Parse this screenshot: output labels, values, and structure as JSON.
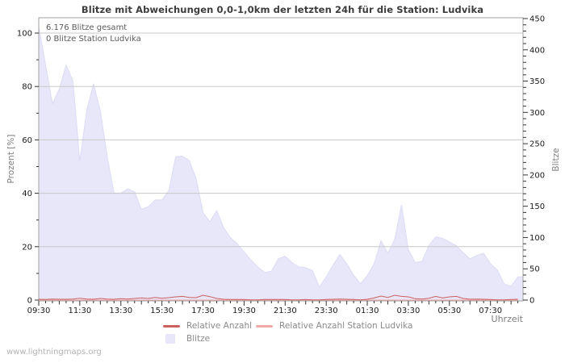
{
  "title": "Blitze mit Abweichungen 0,0-1,0km der letzten 24h für die Station: Ludvika",
  "watermark": "www.lightningmaps.org",
  "annotations": {
    "total": "6.176 Blitze gesamt",
    "station": "0 Blitze Station Ludvika"
  },
  "axes": {
    "left_label": "Prozent  [%]",
    "right_label": "Blitze",
    "x_label": "Uhrzeit"
  },
  "legend": {
    "items": [
      {
        "label": "Relative Anzahl",
        "color": "#cd5f5f",
        "type": "line"
      },
      {
        "label": "Relative Anzahl Station Ludvika",
        "color": "#f4a9a9",
        "type": "line"
      },
      {
        "label": "Blitze",
        "color": "#e7e7f9",
        "type": "area"
      }
    ]
  },
  "colors": {
    "area_fill": "#e7e7f9",
    "area_edge": "#dcdcf4",
    "line_relative": "#cd5f5f",
    "line_relative_station": "#f4a9a9",
    "grid": "#c9c9c9",
    "border": "#a0a0a0",
    "tick": "#333333",
    "tick_label": "#1a1a1a"
  },
  "chart_data": {
    "type": "area",
    "x": [
      "09:30",
      "09:50",
      "10:10",
      "10:30",
      "10:50",
      "11:10",
      "11:30",
      "11:50",
      "12:10",
      "12:30",
      "12:50",
      "13:10",
      "13:30",
      "13:50",
      "14:10",
      "14:30",
      "14:50",
      "15:10",
      "15:30",
      "15:50",
      "16:10",
      "16:30",
      "16:50",
      "17:10",
      "17:30",
      "17:50",
      "18:10",
      "18:30",
      "18:50",
      "19:10",
      "19:30",
      "19:50",
      "20:10",
      "20:30",
      "20:50",
      "21:10",
      "21:30",
      "21:50",
      "22:10",
      "22:30",
      "22:50",
      "23:10",
      "23:30",
      "23:50",
      "00:10",
      "00:30",
      "00:50",
      "01:10",
      "01:30",
      "01:50",
      "02:10",
      "02:30",
      "02:50",
      "03:10",
      "03:30",
      "03:50",
      "04:10",
      "04:30",
      "04:50",
      "05:10",
      "05:30",
      "05:50",
      "06:10",
      "06:30",
      "06:50",
      "07:10",
      "07:30",
      "07:50",
      "08:10",
      "08:30",
      "08:50"
    ],
    "x_tick_labels": [
      "09:30",
      "11:30",
      "13:30",
      "15:30",
      "17:30",
      "19:30",
      "21:30",
      "23:30",
      "01:30",
      "03:30",
      "05:30",
      "07:30"
    ],
    "series": [
      {
        "name": "Blitze",
        "type": "area",
        "axis": "right",
        "color": "#e7e7f9",
        "values": [
          437,
          376,
          314,
          337,
          376,
          350,
          222,
          303,
          346,
          303,
          230,
          171,
          171,
          178,
          173,
          145,
          149,
          160,
          160,
          175,
          229,
          230,
          223,
          194,
          140,
          125,
          143,
          116,
          100,
          90,
          77,
          64,
          53,
          44,
          46,
          66,
          70,
          60,
          53,
          52,
          47,
          21,
          37,
          56,
          73,
          58,
          40,
          26,
          39,
          58,
          95,
          75,
          97,
          152,
          81,
          60,
          62,
          87,
          101,
          99,
          93,
          87,
          76,
          66,
          71,
          75,
          58,
          48,
          26,
          22,
          37
        ]
      },
      {
        "name": "Relative Anzahl",
        "type": "line",
        "axis": "left",
        "color": "#cd5f5f",
        "values": [
          0.3,
          0.2,
          0.4,
          0.3,
          0.3,
          0.4,
          0.7,
          0.4,
          0.3,
          0.6,
          0.4,
          0.3,
          0.5,
          0.4,
          0.6,
          0.8,
          0.6,
          1.0,
          0.7,
          0.9,
          1.2,
          1.4,
          1.0,
          0.9,
          1.8,
          1.3,
          0.6,
          0.3,
          0.2,
          0.2,
          0.2,
          0.1,
          0.1,
          0.2,
          0.2,
          0.2,
          0.2,
          0.1,
          0.1,
          0.2,
          0.1,
          0.1,
          0.2,
          0.3,
          0.4,
          0.3,
          0.2,
          0.1,
          0.3,
          0.8,
          1.5,
          1.0,
          1.8,
          1.4,
          1.2,
          0.5,
          0.4,
          0.7,
          1.4,
          0.8,
          1.2,
          1.4,
          0.6,
          0.3,
          0.4,
          0.3,
          0.2,
          0.1,
          0.1,
          0.2,
          0.3
        ]
      },
      {
        "name": "Relative Anzahl Station Ludvika",
        "type": "line",
        "axis": "left",
        "color": "#f4a9a9",
        "values": [
          0,
          0,
          0,
          0,
          0,
          0,
          0,
          0,
          0,
          0,
          0,
          0,
          0,
          0,
          0,
          0,
          0,
          0,
          0,
          0,
          0,
          0,
          0,
          0,
          0,
          0,
          0,
          0,
          0,
          0,
          0,
          0,
          0,
          0,
          0,
          0,
          0,
          0,
          0,
          0,
          0,
          0,
          0,
          0,
          0,
          0,
          0,
          0,
          0,
          0,
          0,
          0,
          0,
          0,
          0,
          0,
          0,
          0,
          0,
          0,
          0,
          0,
          0,
          0,
          0,
          0,
          0,
          0,
          0,
          0,
          0
        ]
      }
    ],
    "left_axis": {
      "label": "Prozent [%]",
      "ticks": [
        0,
        20,
        40,
        60,
        80,
        100
      ],
      "minor_step": 10,
      "range": [
        0,
        100
      ]
    },
    "right_axis": {
      "label": "Blitze",
      "ticks": [
        0,
        50,
        100,
        150,
        200,
        250,
        300,
        350,
        400,
        450
      ],
      "minor_step": 10,
      "range": [
        0,
        450
      ]
    },
    "grid": "horizontal",
    "legend_position": "bottom"
  }
}
